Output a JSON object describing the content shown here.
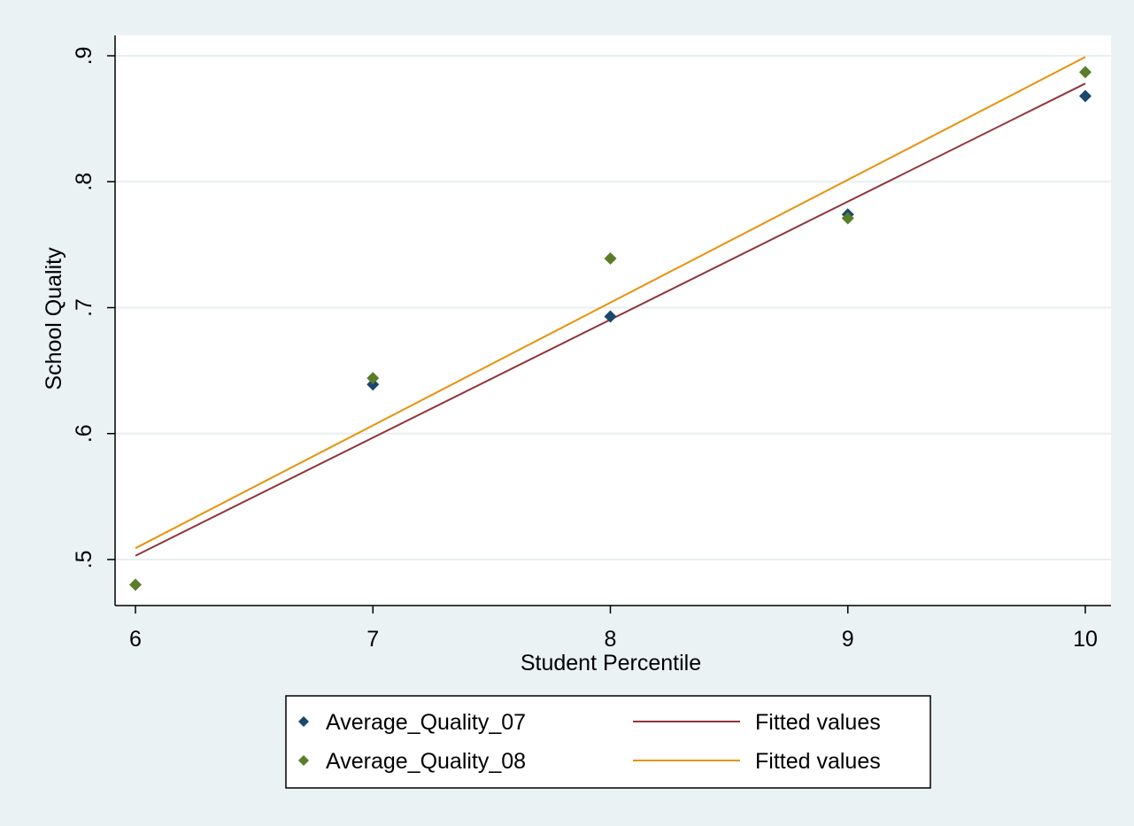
{
  "chart_data": {
    "type": "scatter",
    "title": "",
    "xlabel": "Student Percentile",
    "ylabel": "School Quality",
    "xlim": [
      6,
      10
    ],
    "ylim": [
      0.48,
      0.9
    ],
    "x_ticks": [
      {
        "value": 6,
        "label": "6"
      },
      {
        "value": 7,
        "label": "7"
      },
      {
        "value": 8,
        "label": "8"
      },
      {
        "value": 9,
        "label": "9"
      },
      {
        "value": 10,
        "label": "10"
      }
    ],
    "y_ticks": [
      {
        "value": 0.5,
        "label": ".5"
      },
      {
        "value": 0.6,
        "label": ".6"
      },
      {
        "value": 0.7,
        "label": ".7"
      },
      {
        "value": 0.8,
        "label": ".8"
      },
      {
        "value": 0.9,
        "label": ".9"
      }
    ],
    "grid": true,
    "legend_position": "bottom",
    "scatter_series": [
      {
        "name": "Average_Quality_07",
        "color": "#1a476f",
        "marker": "diamond",
        "x": [
          7,
          8,
          9,
          10
        ],
        "y": [
          0.639,
          0.693,
          0.774,
          0.868
        ]
      },
      {
        "name": "Average_Quality_08",
        "color": "#5a7d2a",
        "marker": "diamond",
        "x": [
          6,
          7,
          8,
          9,
          10
        ],
        "y": [
          0.48,
          0.644,
          0.739,
          0.771,
          0.887
        ]
      }
    ],
    "line_series": [
      {
        "name": "Fitted values",
        "color": "#90353b",
        "x": [
          6,
          10
        ],
        "y": [
          0.503,
          0.878
        ]
      },
      {
        "name": "Fitted values",
        "color": "#e8920c",
        "x": [
          6,
          10
        ],
        "y": [
          0.509,
          0.899
        ]
      }
    ]
  }
}
